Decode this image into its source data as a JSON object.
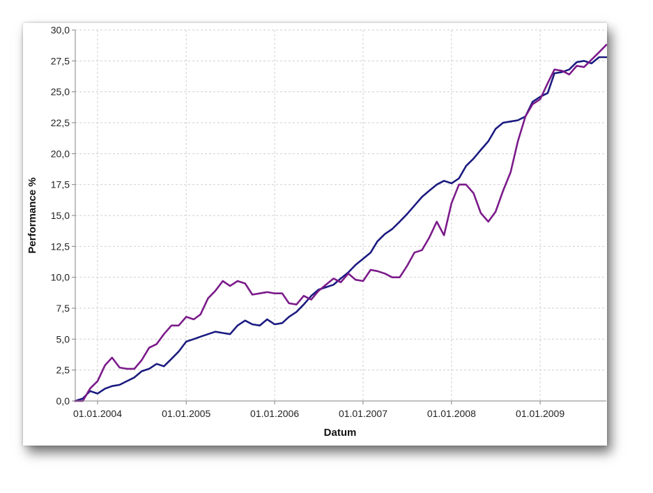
{
  "chart_data": {
    "type": "line",
    "title": "",
    "xlabel": "Datum",
    "ylabel": "Performance %",
    "xlim": [
      "2003-10-01",
      "2009-10-01"
    ],
    "ylim": [
      0,
      30
    ],
    "grid": true,
    "x_ticks": [
      "01.01.2004",
      "01.01.2005",
      "01.01.2006",
      "01.01.2007",
      "01.01.2008",
      "01.01.2009"
    ],
    "x_tick_dates": [
      "2004-01-01",
      "2005-01-01",
      "2006-01-01",
      "2007-01-01",
      "2008-01-01",
      "2009-01-01"
    ],
    "y_ticks": [
      "0,0",
      "2,5",
      "5,0",
      "7,5",
      "10,0",
      "12,5",
      "15,0",
      "17,5",
      "20,0",
      "22,5",
      "25,0",
      "27,5",
      "30,0"
    ],
    "y_tick_values": [
      0,
      2.5,
      5,
      7.5,
      10,
      12.5,
      15,
      17.5,
      20,
      22.5,
      25,
      27.5,
      30
    ],
    "series": [
      {
        "color": "#1a1a80",
        "x": [
          "2003-10-01",
          "2003-11-01",
          "2003-12-01",
          "2004-01-01",
          "2004-02-01",
          "2004-03-01",
          "2004-04-01",
          "2004-05-01",
          "2004-06-01",
          "2004-07-01",
          "2004-08-01",
          "2004-09-01",
          "2004-10-01",
          "2004-11-01",
          "2004-12-01",
          "2005-01-01",
          "2005-02-01",
          "2005-03-01",
          "2005-04-01",
          "2005-05-01",
          "2005-06-01",
          "2005-07-01",
          "2005-08-01",
          "2005-09-01",
          "2005-10-01",
          "2005-11-01",
          "2005-12-01",
          "2006-01-01",
          "2006-02-01",
          "2006-03-01",
          "2006-04-01",
          "2006-05-01",
          "2006-06-01",
          "2006-07-01",
          "2006-08-01",
          "2006-09-01",
          "2006-10-01",
          "2006-11-01",
          "2006-12-01",
          "2007-01-01",
          "2007-02-01",
          "2007-03-01",
          "2007-04-01",
          "2007-05-01",
          "2007-06-01",
          "2007-07-01",
          "2007-08-01",
          "2007-09-01",
          "2007-10-01",
          "2007-11-01",
          "2007-12-01",
          "2008-01-01",
          "2008-02-01",
          "2008-03-01",
          "2008-04-01",
          "2008-05-01",
          "2008-06-01",
          "2008-07-01",
          "2008-08-01",
          "2008-09-01",
          "2008-10-01",
          "2008-11-01",
          "2008-12-01",
          "2009-01-01",
          "2009-02-01",
          "2009-03-01",
          "2009-04-01",
          "2009-05-01",
          "2009-06-01",
          "2009-07-01",
          "2009-08-01",
          "2009-09-01",
          "2009-10-01"
        ],
        "values": [
          0,
          0.2,
          0.8,
          0.6,
          1.0,
          1.2,
          1.3,
          1.6,
          1.9,
          2.4,
          2.6,
          3.0,
          2.8,
          3.4,
          4.0,
          4.8,
          5.0,
          5.2,
          5.4,
          5.6,
          5.5,
          5.4,
          6.1,
          6.5,
          6.2,
          6.1,
          6.6,
          6.2,
          6.3,
          6.8,
          7.2,
          7.8,
          8.5,
          9.0,
          9.2,
          9.4,
          9.9,
          10.4,
          11.0,
          11.5,
          12.0,
          12.9,
          13.5,
          13.9,
          14.5,
          15.1,
          15.8,
          16.5,
          17.0,
          17.5,
          17.8,
          17.6,
          18.0,
          19.0,
          19.6,
          20.3,
          21.0,
          22.0,
          22.5,
          22.6,
          22.7,
          23.0,
          24.2,
          24.6,
          24.9,
          26.5,
          26.6,
          26.8,
          27.4,
          27.5,
          27.3,
          27.8,
          27.8
        ]
      },
      {
        "color": "#7b1a8a",
        "x": [
          "2003-10-01",
          "2003-11-01",
          "2003-12-01",
          "2004-01-01",
          "2004-02-01",
          "2004-03-01",
          "2004-04-01",
          "2004-05-01",
          "2004-06-01",
          "2004-07-01",
          "2004-08-01",
          "2004-09-01",
          "2004-10-01",
          "2004-11-01",
          "2004-12-01",
          "2005-01-01",
          "2005-02-01",
          "2005-03-01",
          "2005-04-01",
          "2005-05-01",
          "2005-06-01",
          "2005-07-01",
          "2005-08-01",
          "2005-09-01",
          "2005-10-01",
          "2005-11-01",
          "2005-12-01",
          "2006-01-01",
          "2006-02-01",
          "2006-03-01",
          "2006-04-01",
          "2006-05-01",
          "2006-06-01",
          "2006-07-01",
          "2006-08-01",
          "2006-09-01",
          "2006-10-01",
          "2006-11-01",
          "2006-12-01",
          "2007-01-01",
          "2007-02-01",
          "2007-03-01",
          "2007-04-01",
          "2007-05-01",
          "2007-06-01",
          "2007-07-01",
          "2007-08-01",
          "2007-09-01",
          "2007-10-01",
          "2007-11-01",
          "2007-12-01",
          "2008-01-01",
          "2008-02-01",
          "2008-03-01",
          "2008-04-01",
          "2008-05-01",
          "2008-06-01",
          "2008-07-01",
          "2008-08-01",
          "2008-09-01",
          "2008-10-01",
          "2008-11-01",
          "2008-12-01",
          "2009-01-01",
          "2009-02-01",
          "2009-03-01",
          "2009-04-01",
          "2009-05-01",
          "2009-06-01",
          "2009-07-01",
          "2009-08-01",
          "2009-09-01",
          "2009-10-01"
        ],
        "values": [
          0,
          0,
          1.0,
          1.6,
          2.9,
          3.5,
          2.7,
          2.6,
          2.6,
          3.3,
          4.3,
          4.6,
          5.4,
          6.1,
          6.1,
          6.8,
          6.6,
          7.0,
          8.3,
          8.9,
          9.7,
          9.3,
          9.7,
          9.5,
          8.6,
          8.7,
          8.8,
          8.7,
          8.7,
          7.9,
          7.8,
          8.5,
          8.2,
          8.9,
          9.4,
          9.9,
          9.6,
          10.3,
          9.8,
          9.7,
          10.6,
          10.5,
          10.3,
          10.0,
          10.0,
          10.9,
          12.0,
          12.2,
          13.2,
          14.5,
          13.4,
          16.0,
          17.5,
          17.5,
          16.8,
          15.2,
          14.5,
          15.3,
          17.0,
          18.5,
          21.0,
          23.0,
          24.0,
          24.4,
          25.7,
          26.8,
          26.7,
          26.4,
          27.1,
          27.0,
          27.6,
          28.2,
          28.8
        ]
      }
    ]
  }
}
